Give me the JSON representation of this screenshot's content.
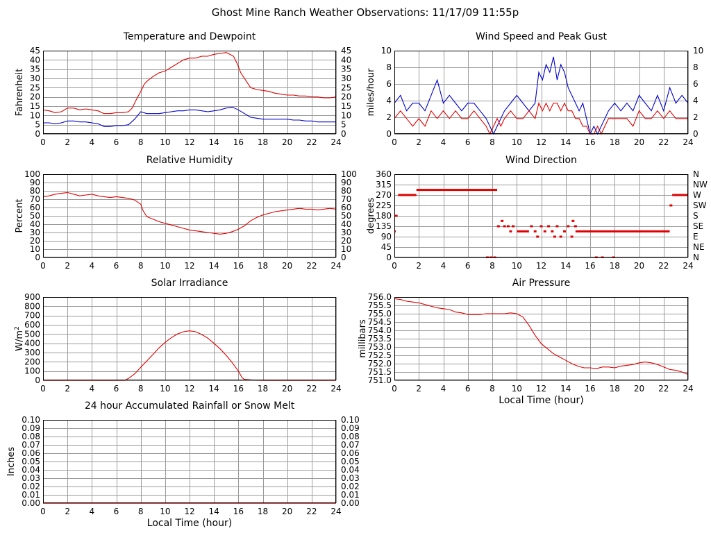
{
  "page": {
    "title": "Ghost Mine Ranch Weather Observations: 11/17/09 11:55p"
  },
  "colors": {
    "red": "#e00000",
    "blue": "#0000c8",
    "grid": "#9a9a9a",
    "frame": "#000000"
  },
  "chart_data": [
    {
      "id": "temp",
      "type": "line",
      "title": "Temperature and Dewpoint",
      "ylabel": "Fahrenheit",
      "xlabel": "",
      "xlim": [
        0,
        24
      ],
      "ylim": [
        0,
        45
      ],
      "xticks": [
        0,
        2,
        4,
        6,
        8,
        10,
        12,
        14,
        16,
        18,
        20,
        22,
        24
      ],
      "yticks": [
        "0",
        "5",
        "10",
        "15",
        "20",
        "25",
        "30",
        "35",
        "40",
        "45"
      ],
      "right_ticks": true,
      "grid": true,
      "series": [
        {
          "color": "red",
          "x": [
            0,
            0.5,
            1,
            1.5,
            2,
            2.5,
            3,
            3.5,
            4,
            4.5,
            5,
            5.5,
            6,
            6.5,
            7,
            7.3,
            7.6,
            8,
            8.3,
            8.6,
            9,
            9.5,
            10,
            10.5,
            11,
            11.5,
            12,
            12.5,
            13,
            13.5,
            14,
            14.5,
            15,
            15.3,
            15.6,
            15.9,
            16.2,
            16.6,
            17,
            17.5,
            18,
            18.5,
            19,
            19.5,
            20,
            20.5,
            21,
            21.5,
            22,
            22.5,
            23,
            23.5,
            24
          ],
          "y": [
            13,
            12.5,
            11.5,
            12,
            14,
            14,
            13,
            13.5,
            13,
            12.5,
            11,
            11,
            11.5,
            11.5,
            12,
            14,
            18,
            23,
            27,
            29,
            31,
            33,
            34,
            36,
            38,
            40,
            41,
            41,
            42,
            42,
            43,
            43.5,
            44,
            43,
            42,
            38,
            33,
            29,
            25,
            24,
            23.5,
            23,
            22,
            21.5,
            21,
            21,
            20.5,
            20.5,
            20,
            20,
            19.5,
            19.5,
            20
          ]
        },
        {
          "color": "blue",
          "x": [
            0,
            0.5,
            1,
            1.5,
            2,
            2.5,
            3,
            3.5,
            4,
            4.5,
            5,
            5.5,
            6,
            6.5,
            7,
            7.5,
            8,
            8.5,
            9,
            9.5,
            10,
            10.5,
            11,
            11.5,
            12,
            12.5,
            13,
            13.5,
            14,
            14.5,
            15,
            15.5,
            16,
            16.5,
            17,
            17.5,
            18,
            18.5,
            19,
            19.5,
            20,
            20.5,
            21,
            21.5,
            22,
            22.5,
            23,
            23.5,
            24
          ],
          "y": [
            6,
            6,
            5.5,
            6,
            7,
            7,
            6.5,
            6.5,
            6,
            5.5,
            4,
            4,
            4.5,
            4.5,
            5,
            8,
            12,
            11,
            11,
            11,
            11.5,
            12,
            12.5,
            12.5,
            13,
            13,
            12.5,
            12,
            12.5,
            13,
            14,
            14.5,
            13,
            11,
            9,
            8.5,
            8,
            8,
            8,
            8,
            8,
            7.5,
            7.5,
            7,
            7,
            6.5,
            6.5,
            6.5,
            6.5
          ]
        }
      ]
    },
    {
      "id": "wind",
      "type": "line",
      "title": "Wind Speed and Peak Gust",
      "ylabel": "miles/hour",
      "xlabel": "",
      "xlim": [
        0,
        24
      ],
      "ylim": [
        0,
        10.8
      ],
      "xticks": [
        0,
        2,
        4,
        6,
        8,
        10,
        12,
        14,
        16,
        18,
        20,
        22,
        24
      ],
      "yticks": [
        "0",
        "2",
        "4",
        "6",
        "8",
        "10"
      ],
      "right_ticks": true,
      "grid": true,
      "series": [
        {
          "color": "blue",
          "x": [
            0,
            0.5,
            1,
            1.5,
            2,
            2.5,
            3,
            3.5,
            4,
            4.5,
            5,
            5.5,
            6,
            6.5,
            7,
            7.5,
            7.8,
            8.1,
            8.4,
            8.7,
            9,
            9.5,
            10,
            10.5,
            11,
            11.5,
            11.8,
            12.1,
            12.4,
            12.7,
            13,
            13.3,
            13.6,
            13.9,
            14.2,
            14.5,
            14.8,
            15.1,
            15.4,
            15.7,
            16,
            16.3,
            16.6,
            16.9,
            17.2,
            17.5,
            18,
            18.5,
            19,
            19.5,
            20,
            20.5,
            21,
            21.5,
            22,
            22.5,
            23,
            23.5,
            24
          ],
          "y": [
            4,
            5,
            3,
            4,
            4,
            3,
            5,
            7,
            4,
            5,
            4,
            3,
            4,
            4,
            3,
            2,
            1,
            0,
            1,
            2,
            3,
            4,
            5,
            4,
            3,
            4,
            8,
            7,
            9,
            8,
            10,
            7,
            9,
            8,
            6,
            5,
            4,
            3,
            4,
            2,
            0,
            1,
            0,
            1,
            2,
            3,
            4,
            3,
            4,
            3,
            5,
            4,
            3,
            5,
            3,
            6,
            4,
            5,
            4
          ]
        },
        {
          "color": "red",
          "x": [
            0,
            0.5,
            1,
            1.5,
            2,
            2.5,
            3,
            3.5,
            4,
            4.5,
            5,
            5.5,
            6,
            6.5,
            7,
            7.5,
            7.8,
            8.1,
            8.4,
            8.7,
            9,
            9.5,
            10,
            10.5,
            11,
            11.5,
            11.8,
            12.1,
            12.4,
            12.7,
            13,
            13.3,
            13.6,
            13.9,
            14.2,
            14.5,
            14.8,
            15.1,
            15.4,
            15.7,
            16,
            16.3,
            16.6,
            16.9,
            17.2,
            17.5,
            18,
            18.5,
            19,
            19.5,
            20,
            20.5,
            21,
            21.5,
            22,
            22.5,
            23,
            23.5,
            24
          ],
          "y": [
            2,
            3,
            2,
            1,
            2,
            1,
            3,
            2,
            3,
            2,
            3,
            2,
            2,
            3,
            2,
            1,
            0,
            1,
            2,
            1,
            2,
            3,
            2,
            2,
            3,
            2,
            4,
            3,
            4,
            3,
            4,
            4,
            3,
            4,
            3,
            3,
            2,
            2,
            1,
            1,
            0,
            0,
            1,
            0,
            1,
            2,
            2,
            2,
            2,
            1,
            3,
            2,
            2,
            3,
            2,
            3,
            2,
            2,
            2
          ]
        }
      ]
    },
    {
      "id": "rh",
      "type": "line",
      "title": "Relative Humidity",
      "ylabel": "Percent",
      "xlabel": "",
      "xlim": [
        0,
        24
      ],
      "ylim": [
        0,
        100
      ],
      "xticks": [
        0,
        2,
        4,
        6,
        8,
        10,
        12,
        14,
        16,
        18,
        20,
        22,
        24
      ],
      "yticks": [
        "0",
        "10",
        "20",
        "30",
        "40",
        "50",
        "60",
        "70",
        "80",
        "90",
        "100"
      ],
      "right_ticks": true,
      "grid": true,
      "series": [
        {
          "color": "red",
          "x": [
            0,
            0.5,
            1,
            1.5,
            2,
            2.5,
            3,
            3.5,
            4,
            4.5,
            5,
            5.5,
            6,
            6.5,
            7,
            7.5,
            8,
            8.2,
            8.5,
            9,
            9.5,
            10,
            10.5,
            11,
            11.5,
            12,
            12.5,
            13,
            13.5,
            14,
            14.5,
            15,
            15.5,
            16,
            16.5,
            17,
            17.5,
            18,
            18.5,
            19,
            19.5,
            20,
            20.5,
            21,
            21.5,
            22,
            22.5,
            23,
            23.5,
            24
          ],
          "y": [
            73,
            74,
            76,
            77,
            78,
            76,
            74,
            75,
            76,
            74,
            73,
            72,
            73,
            72,
            71,
            69,
            64,
            56,
            49,
            46,
            43,
            41,
            39,
            37,
            35,
            33,
            32,
            31,
            30,
            29,
            28,
            29,
            31,
            34,
            38,
            44,
            48,
            51,
            53,
            55,
            56,
            57,
            58,
            59,
            58,
            58,
            57,
            58,
            59,
            58
          ]
        }
      ]
    },
    {
      "id": "wdir",
      "type": "scatter",
      "title": "Wind Direction",
      "ylabel": "degrees",
      "xlabel": "",
      "xlim": [
        0,
        24
      ],
      "ylim": [
        0,
        360
      ],
      "xticks": [
        0,
        2,
        4,
        6,
        8,
        10,
        12,
        14,
        16,
        18,
        20,
        22,
        24
      ],
      "yticks": [
        "0",
        "45",
        "90",
        "135",
        "180",
        "225",
        "270",
        "315",
        "360"
      ],
      "right_labels": [
        "N",
        "NE",
        "E",
        "SE",
        "S",
        "SW",
        "W",
        "NW",
        "N"
      ],
      "grid": true,
      "segments": [
        {
          "x0": 0.3,
          "x1": 1.8,
          "y": 270
        },
        {
          "x0": 1.8,
          "x1": 8.4,
          "y": 292
        },
        {
          "x0": 10,
          "x1": 11,
          "y": 113
        },
        {
          "x0": 14.8,
          "x1": 22.5,
          "y": 113
        },
        {
          "x0": 22.7,
          "x1": 24,
          "y": 270
        }
      ],
      "points": [
        [
          0,
          113
        ],
        [
          0.15,
          180
        ],
        [
          7.6,
          0
        ],
        [
          7.9,
          0
        ],
        [
          8.2,
          0
        ],
        [
          8.5,
          135
        ],
        [
          8.8,
          158
        ],
        [
          9.0,
          135
        ],
        [
          9.3,
          135
        ],
        [
          9.5,
          113
        ],
        [
          9.7,
          135
        ],
        [
          11.2,
          135
        ],
        [
          11.5,
          113
        ],
        [
          11.7,
          90
        ],
        [
          12.0,
          135
        ],
        [
          12.3,
          113
        ],
        [
          12.6,
          135
        ],
        [
          12.9,
          113
        ],
        [
          13.1,
          90
        ],
        [
          13.3,
          135
        ],
        [
          13.6,
          90
        ],
        [
          13.9,
          113
        ],
        [
          14.2,
          135
        ],
        [
          14.5,
          90
        ],
        [
          14.6,
          158
        ],
        [
          14.8,
          135
        ],
        [
          16.5,
          0
        ],
        [
          17.0,
          0
        ],
        [
          17.9,
          0
        ],
        [
          22.6,
          225
        ]
      ]
    },
    {
      "id": "solar",
      "type": "line",
      "title": "Solar Irradiance",
      "ylabel": "W/m",
      "ylabel_sup": "2",
      "xlabel": "",
      "xlim": [
        0,
        24
      ],
      "ylim": [
        0,
        900
      ],
      "xticks": [
        0,
        2,
        4,
        6,
        8,
        10,
        12,
        14,
        16,
        18,
        20,
        22,
        24
      ],
      "yticks": [
        "0",
        "100",
        "200",
        "300",
        "400",
        "500",
        "600",
        "700",
        "800",
        "900"
      ],
      "right_ticks": false,
      "grid": true,
      "series": [
        {
          "color": "red",
          "x": [
            0,
            6.7,
            7,
            7.5,
            8,
            8.5,
            9,
            9.5,
            10,
            10.5,
            11,
            11.5,
            12,
            12.5,
            13,
            13.5,
            14,
            14.5,
            15,
            15.5,
            16,
            16.3,
            16.5,
            17,
            18,
            24
          ],
          "y": [
            0,
            0,
            20,
            70,
            140,
            210,
            280,
            350,
            410,
            460,
            500,
            525,
            535,
            525,
            495,
            455,
            400,
            340,
            270,
            190,
            100,
            30,
            10,
            5,
            0,
            0
          ]
        }
      ]
    },
    {
      "id": "press",
      "type": "line",
      "title": "Air Pressure",
      "ylabel": "millibars",
      "xlabel": "Local Time (hour)",
      "xlim": [
        0,
        24
      ],
      "ylim": [
        751.0,
        756.0
      ],
      "xticks": [
        0,
        2,
        4,
        6,
        8,
        10,
        12,
        14,
        16,
        18,
        20,
        22,
        24
      ],
      "yticks": [
        "751.0",
        "751.5",
        "752.0",
        "752.5",
        "753.0",
        "753.5",
        "754.0",
        "754.5",
        "755.0",
        "755.5",
        "756.0"
      ],
      "right_ticks": false,
      "grid": true,
      "series": [
        {
          "color": "red",
          "x": [
            0,
            0.5,
            1,
            1.5,
            2,
            2.5,
            3,
            3.5,
            4,
            4.5,
            5,
            5.5,
            6,
            6.5,
            7,
            7.5,
            8,
            8.5,
            9,
            9.5,
            10,
            10.5,
            11,
            11.5,
            12,
            12.5,
            13,
            13.5,
            14,
            14.5,
            15,
            15.5,
            16,
            16.5,
            17,
            17.5,
            18,
            18.5,
            19,
            19.5,
            20,
            20.5,
            21,
            21.5,
            22,
            22.5,
            23,
            23.5,
            24
          ],
          "y": [
            755.9,
            755.85,
            755.75,
            755.7,
            755.65,
            755.55,
            755.45,
            755.35,
            755.3,
            755.25,
            755.1,
            755.05,
            754.95,
            754.95,
            754.95,
            755.0,
            755.0,
            755.0,
            755.0,
            755.05,
            755.0,
            754.8,
            754.3,
            753.7,
            753.2,
            752.9,
            752.6,
            752.4,
            752.2,
            752.0,
            751.85,
            751.75,
            751.75,
            751.7,
            751.8,
            751.8,
            751.75,
            751.85,
            751.9,
            751.95,
            752.05,
            752.1,
            752.05,
            751.95,
            751.8,
            751.65,
            751.6,
            751.5,
            751.35
          ]
        }
      ]
    },
    {
      "id": "rain",
      "type": "line",
      "title": "24 hour Accumulated Rainfall or Snow Melt",
      "ylabel": "Inches",
      "xlabel": "Local Time (hour)",
      "xlim": [
        0,
        24
      ],
      "ylim": [
        0,
        0.1
      ],
      "xticks": [
        0,
        2,
        4,
        6,
        8,
        10,
        12,
        14,
        16,
        18,
        20,
        22,
        24
      ],
      "yticks": [
        "0.00",
        "0.01",
        "0.02",
        "0.03",
        "0.04",
        "0.05",
        "0.06",
        "0.07",
        "0.08",
        "0.09",
        "0.10"
      ],
      "right_ticks": true,
      "grid": true,
      "series": [
        {
          "color": "red",
          "x": [
            0,
            24
          ],
          "y": [
            0,
            0
          ]
        }
      ]
    }
  ]
}
